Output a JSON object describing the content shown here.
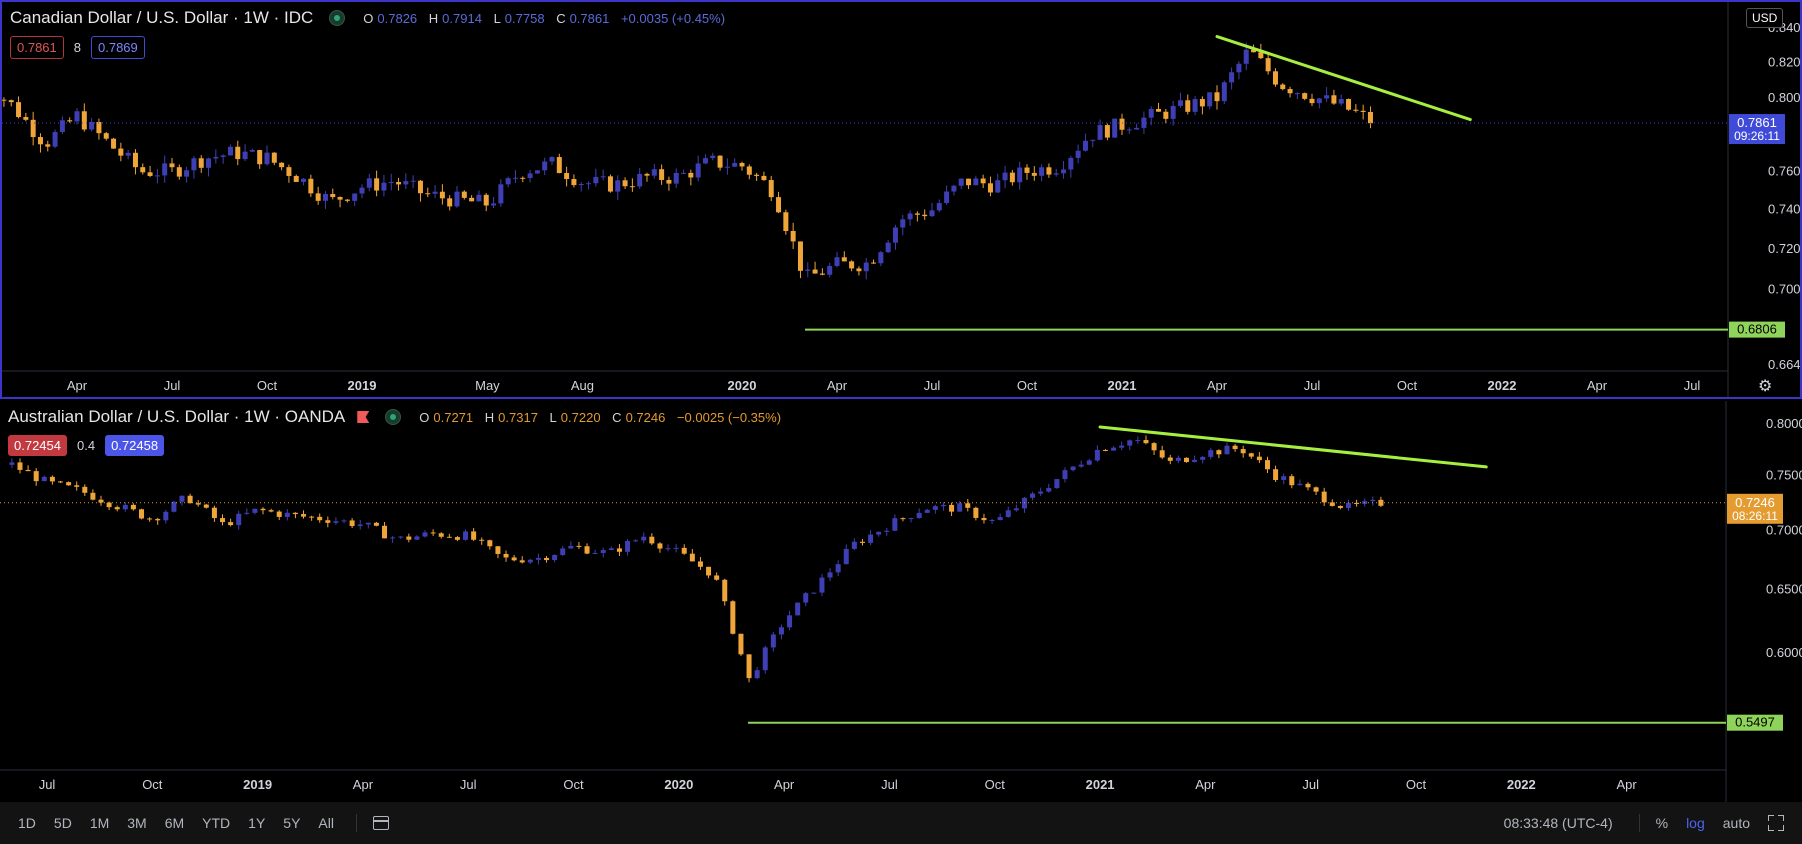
{
  "pane1": {
    "title": "Canadian Dollar / U.S. Dollar · 1W · IDC",
    "ohlc": {
      "o_label": "O",
      "o": "0.7826",
      "h_label": "H",
      "h": "0.7914",
      "l_label": "L",
      "l": "0.7758",
      "c_label": "C",
      "c": "0.7861",
      "change": "+0.0035 (+0.45%)"
    },
    "sell_price": "0.7861",
    "spread": "8",
    "buy_price": "0.7869",
    "currency_button": "USD",
    "last_price_label": "0.7861",
    "countdown": "09:26:11",
    "support_label": "0.6806",
    "log_scale": true,
    "y_ticks": [
      "0.8400",
      "0.8200",
      "0.8000",
      "0.7600",
      "0.7400",
      "0.7200",
      "0.7000",
      "0.6640"
    ],
    "x_ticks": [
      "Apr",
      "Jul",
      "Oct",
      "2019",
      "May",
      "Aug",
      "2020",
      "Apr",
      "Jul",
      "Oct",
      "2021",
      "Apr",
      "Jul",
      "Oct",
      "2022",
      "Apr",
      "Jul"
    ]
  },
  "pane2": {
    "title": "Australian Dollar / U.S. Dollar · 1W · OANDA",
    "ohlc": {
      "o_label": "O",
      "o": "0.7271",
      "h_label": "H",
      "h": "0.7317",
      "l_label": "L",
      "l": "0.7220",
      "c_label": "C",
      "c": "0.7246",
      "change": "−0.0025 (−0.35%)"
    },
    "sell_price": "0.72454",
    "spread": "0.4",
    "buy_price": "0.72458",
    "last_price_label": "0.7246",
    "countdown": "08:26:11",
    "support_label": "0.5497",
    "log_scale": true,
    "y_ticks": [
      "0.8000",
      "0.7500",
      "0.7000",
      "0.6500",
      "0.6000"
    ],
    "x_ticks": [
      "Jul",
      "Oct",
      "2019",
      "Apr",
      "Jul",
      "Oct",
      "2020",
      "Apr",
      "Jul",
      "Oct",
      "2021",
      "Apr",
      "Jul",
      "Oct",
      "2022",
      "Apr"
    ]
  },
  "bottom_bar": {
    "ranges": [
      "1D",
      "5D",
      "1M",
      "3M",
      "6M",
      "YTD",
      "1Y",
      "5Y",
      "All"
    ],
    "clock": "08:33:48 (UTC-4)",
    "percent": "%",
    "log": "log",
    "auto": "auto"
  },
  "colors": {
    "up": "#3f3fb5",
    "down": "#f0a53a",
    "trend": "#a6ee3f",
    "support": "#8fd45a",
    "accent_blue": "#3f4bd8",
    "accent_orange": "#e49b30"
  },
  "chart_data": [
    {
      "type": "candlestick",
      "title": "Canadian Dollar / U.S. Dollar · 1W · IDC",
      "series_close": [
        [
          "2018-01",
          0.81
        ],
        [
          "2018-02",
          0.795
        ],
        [
          "2018-03",
          0.775
        ],
        [
          "2018-04",
          0.79
        ],
        [
          "2018-05",
          0.775
        ],
        [
          "2018-06",
          0.76
        ],
        [
          "2018-07",
          0.76
        ],
        [
          "2018-08",
          0.767
        ],
        [
          "2018-09",
          0.77
        ],
        [
          "2018-10",
          0.767
        ],
        [
          "2018-11",
          0.757
        ],
        [
          "2018-12",
          0.744
        ],
        [
          "2019-01",
          0.752
        ],
        [
          "2019-02",
          0.755
        ],
        [
          "2019-03",
          0.748
        ],
        [
          "2019-04",
          0.745
        ],
        [
          "2019-05",
          0.743
        ],
        [
          "2019-06",
          0.76
        ],
        [
          "2019-07",
          0.764
        ],
        [
          "2019-08",
          0.754
        ],
        [
          "2019-09",
          0.753
        ],
        [
          "2019-10",
          0.757
        ],
        [
          "2019-11",
          0.757
        ],
        [
          "2019-12",
          0.765
        ],
        [
          "2020-01",
          0.763
        ],
        [
          "2020-02",
          0.75
        ],
        [
          "2020-03",
          0.705
        ],
        [
          "2020-04",
          0.712
        ],
        [
          "2020-05",
          0.713
        ],
        [
          "2020-06",
          0.735
        ],
        [
          "2020-07",
          0.74
        ],
        [
          "2020-08",
          0.755
        ],
        [
          "2020-09",
          0.753
        ],
        [
          "2020-10",
          0.76
        ],
        [
          "2020-11",
          0.763
        ],
        [
          "2020-12",
          0.78
        ],
        [
          "2021-01",
          0.785
        ],
        [
          "2021-02",
          0.79
        ],
        [
          "2021-03",
          0.795
        ],
        [
          "2021-04",
          0.8
        ],
        [
          "2021-05",
          0.827
        ],
        [
          "2021-06",
          0.808
        ],
        [
          "2021-07",
          0.801
        ],
        [
          "2021-08",
          0.795
        ],
        [
          "2021-09",
          0.786
        ]
      ],
      "support": 0.6806,
      "last_price": 0.7861,
      "trendline": [
        [
          "2021-04",
          0.835
        ],
        [
          "2021-12",
          0.788
        ]
      ]
    },
    {
      "type": "candlestick",
      "title": "Australian Dollar / U.S. Dollar · 1W · OANDA",
      "series_close": [
        [
          "2018-06",
          0.76
        ],
        [
          "2018-07",
          0.743
        ],
        [
          "2018-08",
          0.735
        ],
        [
          "2018-09",
          0.722
        ],
        [
          "2018-10",
          0.71
        ],
        [
          "2018-11",
          0.73
        ],
        [
          "2018-12",
          0.705
        ],
        [
          "2019-01",
          0.718
        ],
        [
          "2019-02",
          0.713
        ],
        [
          "2019-03",
          0.71
        ],
        [
          "2019-04",
          0.705
        ],
        [
          "2019-05",
          0.692
        ],
        [
          "2019-06",
          0.697
        ],
        [
          "2019-07",
          0.695
        ],
        [
          "2019-08",
          0.675
        ],
        [
          "2019-09",
          0.676
        ],
        [
          "2019-10",
          0.686
        ],
        [
          "2019-11",
          0.68
        ],
        [
          "2019-12",
          0.695
        ],
        [
          "2020-01",
          0.68
        ],
        [
          "2020-02",
          0.662
        ],
        [
          "2020-03",
          0.58
        ],
        [
          "2020-04",
          0.625
        ],
        [
          "2020-05",
          0.655
        ],
        [
          "2020-06",
          0.688
        ],
        [
          "2020-07",
          0.705
        ],
        [
          "2020-08",
          0.72
        ],
        [
          "2020-09",
          0.72
        ],
        [
          "2020-10",
          0.707
        ],
        [
          "2020-11",
          0.729
        ],
        [
          "2020-12",
          0.752
        ],
        [
          "2021-01",
          0.776
        ],
        [
          "2021-02",
          0.785
        ],
        [
          "2021-03",
          0.762
        ],
        [
          "2021-04",
          0.772
        ],
        [
          "2021-05",
          0.776
        ],
        [
          "2021-06",
          0.75
        ],
        [
          "2021-07",
          0.735
        ],
        [
          "2021-08",
          0.72
        ],
        [
          "2021-09",
          0.7246
        ]
      ],
      "support": 0.5497,
      "last_price": 0.7246,
      "trendline": [
        [
          "2021-01",
          0.797
        ],
        [
          "2021-12",
          0.758
        ]
      ]
    }
  ]
}
